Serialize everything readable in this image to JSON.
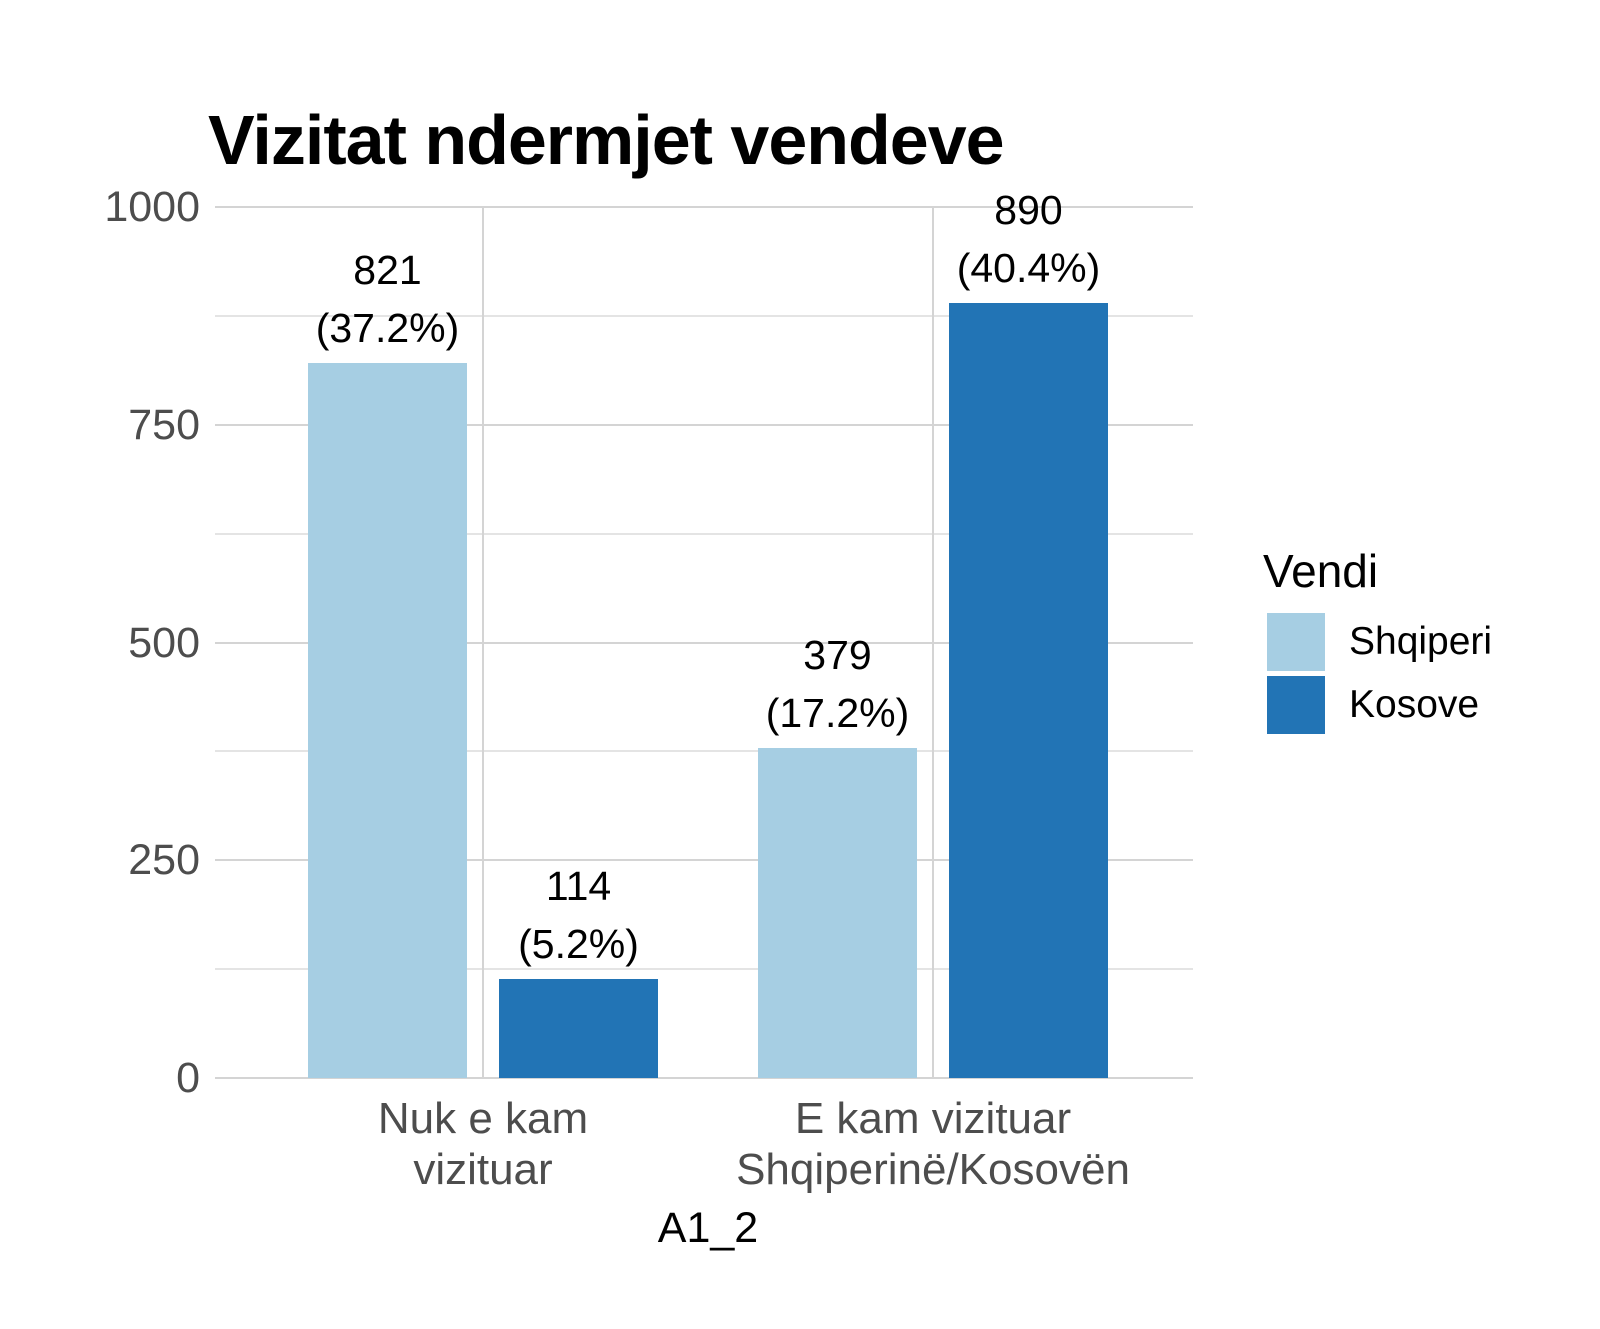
{
  "title": "Vizitat ndermjet vendeve",
  "background": "#FFFFFF",
  "colors": {
    "shqiperi_fill": "#A6CEE3",
    "kosove_fill": "#2274B5",
    "axis_text": "#4D4D4D",
    "label_text": "#000000",
    "grid_major": "#D4D4D4",
    "grid_minor": "#E4E4E4"
  },
  "chart_data": {
    "type": "bar",
    "title": "Vizitat ndermjet vendeve",
    "xlabel": "A1_2",
    "ylabel": "",
    "ylim": [
      0,
      1000
    ],
    "y_major_ticks": [
      0,
      250,
      500,
      750,
      1000
    ],
    "y_minor_ticks": [
      125,
      375,
      625,
      875
    ],
    "grid": true,
    "categories": [
      "Nuk e kam\nvizituar",
      "E kam vizituar\nShqiperinë/Kosovën"
    ],
    "series": [
      {
        "name": "Shqiperi",
        "color": "#A6CEE3",
        "values": [
          821,
          379
        ],
        "percents": [
          37.2,
          17.2
        ],
        "pct_labels": [
          "(37.2%)",
          "(17.2%)"
        ]
      },
      {
        "name": "Kosove",
        "color": "#2274B5",
        "values": [
          114,
          890
        ],
        "percents": [
          5.2,
          40.4
        ],
        "pct_labels": [
          "(5.2%)",
          "(40.4%)"
        ]
      }
    ],
    "legend_title": "Vendi",
    "legend_position": "right"
  }
}
